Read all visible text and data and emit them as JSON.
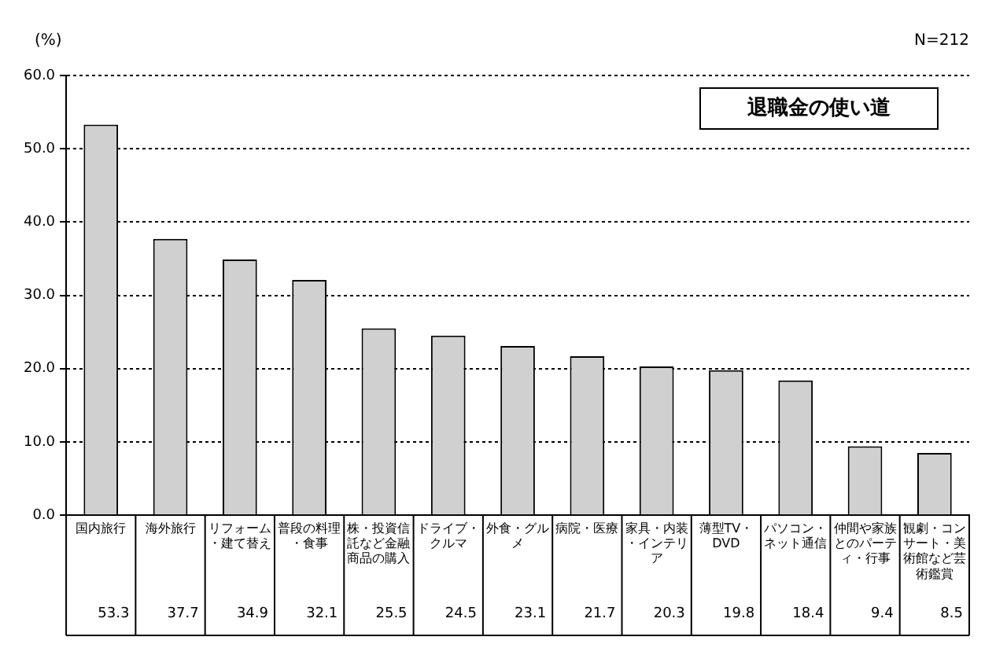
{
  "chart_data": {
    "type": "bar",
    "title": "退職金の使い道",
    "ylabel": "(%)",
    "annotations": [
      "N=212"
    ],
    "categories": [
      "国内旅行",
      "海外旅行",
      "リフォーム・建て替え",
      "普段の料理・食事",
      "株・投資信託など金融商品の購入",
      "ドライブ・クルマ",
      "外食・グルメ",
      "病院・医療",
      "家具・内装・インテリア",
      "薄型TV・DVD",
      "パソコン・ネット通信",
      "仲間や家族とのパーティ・行事",
      "観劇・コンサート・美術館など芸術鑑賞"
    ],
    "values": [
      53.3,
      37.7,
      34.9,
      32.1,
      25.5,
      24.5,
      23.1,
      21.7,
      20.3,
      19.8,
      18.4,
      9.4,
      8.5
    ],
    "color": "#d0d0d0",
    "data_labels": true,
    "ylim": [
      0,
      60
    ],
    "yticks": [
      {
        "value": 0,
        "label": "0.0"
      },
      {
        "value": 10,
        "label": "10.0"
      },
      {
        "value": 20,
        "label": "20.0"
      },
      {
        "value": 30,
        "label": "30.0"
      },
      {
        "value": 40,
        "label": "40.0"
      },
      {
        "value": 50,
        "label": "50.0"
      },
      {
        "value": 60,
        "label": "60.0"
      }
    ],
    "grid": "y",
    "legend": false
  }
}
